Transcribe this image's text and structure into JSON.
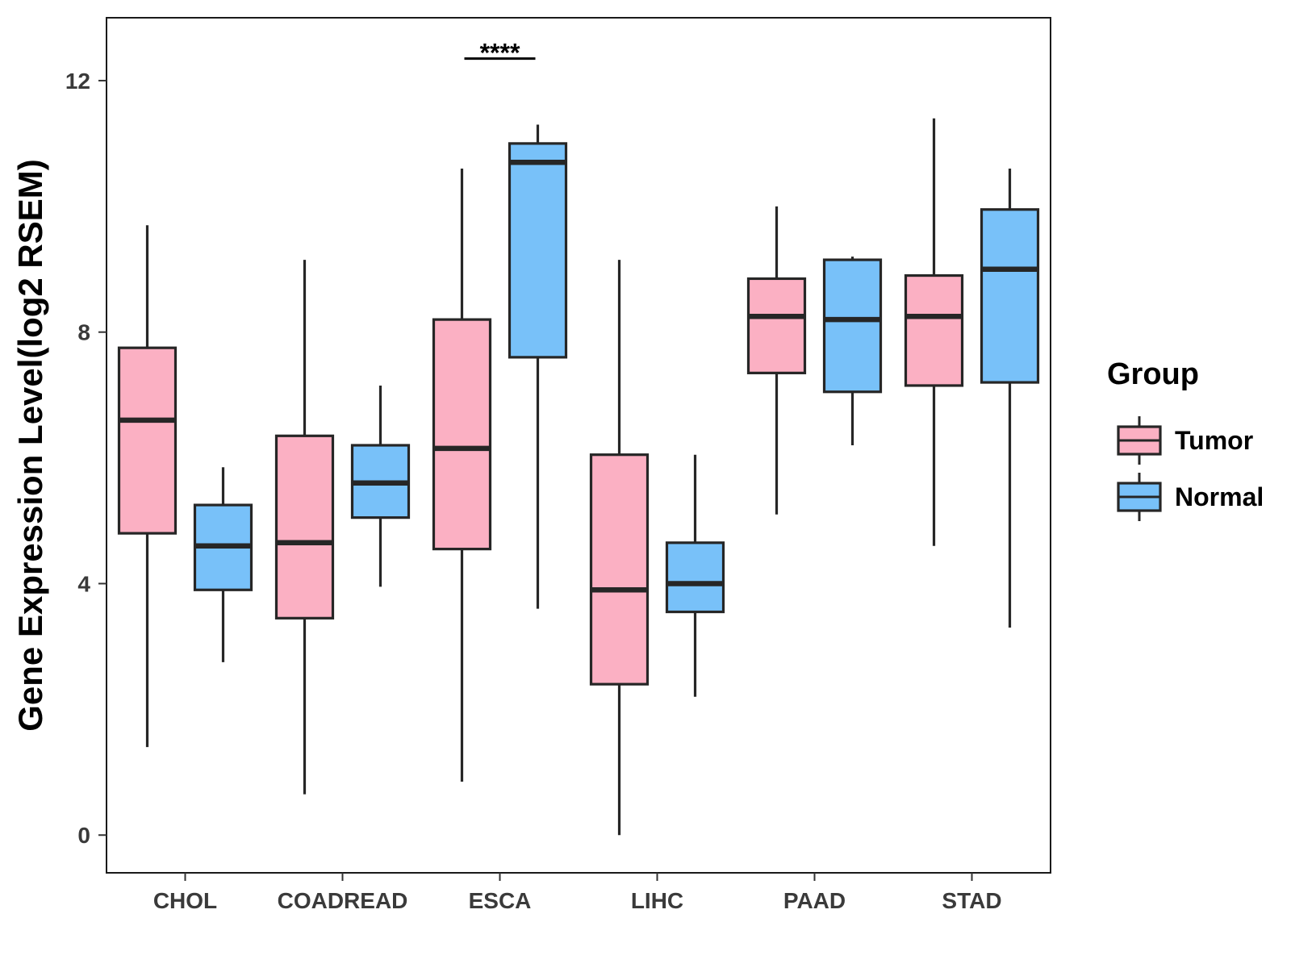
{
  "chart_data": {
    "type": "boxplot",
    "title": "",
    "xlabel": "",
    "ylabel": "Gene Expression Level(log2 RSEM)",
    "ylim": [
      -0.6,
      13.0
    ],
    "yticks": [
      0,
      4,
      8,
      12
    ],
    "categories": [
      "CHOL",
      "COADREAD",
      "ESCA",
      "LIHC",
      "PAAD",
      "STAD"
    ],
    "legend": {
      "title": "Group",
      "position": "right",
      "entries": [
        "Tumor",
        "Normal"
      ]
    },
    "series": [
      {
        "name": "Tumor",
        "color": "#FBB0C3",
        "boxes": [
          {
            "min": 1.4,
            "q1": 4.8,
            "median": 6.6,
            "q3": 7.75,
            "max": 9.7
          },
          {
            "min": 0.65,
            "q1": 3.45,
            "median": 4.65,
            "q3": 6.35,
            "max": 9.15
          },
          {
            "min": 0.85,
            "q1": 4.55,
            "median": 6.15,
            "q3": 8.2,
            "max": 10.6
          },
          {
            "min": 0.0,
            "q1": 2.4,
            "median": 3.9,
            "q3": 6.05,
            "max": 9.15
          },
          {
            "min": 5.1,
            "q1": 7.35,
            "median": 8.25,
            "q3": 8.85,
            "max": 10.0
          },
          {
            "min": 4.6,
            "q1": 7.15,
            "median": 8.25,
            "q3": 8.9,
            "max": 11.4
          }
        ]
      },
      {
        "name": "Normal",
        "color": "#78C1F9",
        "boxes": [
          {
            "min": 2.75,
            "q1": 3.9,
            "median": 4.6,
            "q3": 5.25,
            "max": 5.85
          },
          {
            "min": 3.95,
            "q1": 5.05,
            "median": 5.6,
            "q3": 6.2,
            "max": 7.15
          },
          {
            "min": 3.6,
            "q1": 7.6,
            "median": 10.7,
            "q3": 11.0,
            "max": 11.3
          },
          {
            "min": 2.2,
            "q1": 3.55,
            "median": 4.0,
            "q3": 4.65,
            "max": 6.05
          },
          {
            "min": 6.2,
            "q1": 7.05,
            "median": 8.2,
            "q3": 9.15,
            "max": 9.2
          },
          {
            "min": 3.3,
            "q1": 7.2,
            "median": 9.0,
            "q3": 9.95,
            "max": 10.6
          }
        ]
      }
    ],
    "annotations": [
      {
        "category": "ESCA",
        "text": "****",
        "y": 12.35
      }
    ]
  }
}
